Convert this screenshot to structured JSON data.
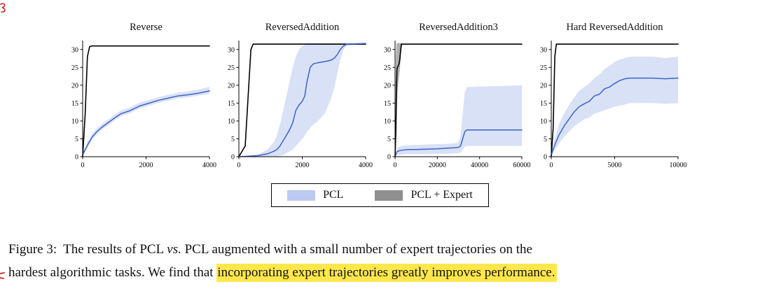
{
  "colors": {
    "pcl_line": "#3c64c8",
    "pcl_band": "#b9c8f0",
    "expert_line": "#000000",
    "expert_band": "#7a7a7a",
    "highlight": "#ffe74c",
    "artifact_red": "#cc2222"
  },
  "legend": {
    "items": [
      {
        "label": "PCL",
        "swatch": "#bccaf1"
      },
      {
        "label": "PCL + Expert",
        "swatch": "#8f8f8f"
      }
    ]
  },
  "caption": {
    "label": "Figure 3:",
    "line1_a": "The results of PCL",
    "vs": "vs.",
    "line1_b": "PCL augmented with a small number of expert trajectories on the",
    "line2_a": "hardest algorithmic tasks. We find that",
    "line2_highlight": "incorporating expert trajectories greatly improves performance."
  },
  "chart_data": [
    {
      "type": "line",
      "title": "Reverse",
      "xlim": [
        0,
        4000
      ],
      "ylim": [
        0,
        32.5
      ],
      "xticks": [
        0,
        2000,
        4000
      ],
      "yticks": [
        0,
        5,
        10,
        15,
        20,
        25,
        30
      ],
      "series": [
        {
          "name": "PCL + Expert",
          "color": "#000000",
          "width": 1.6,
          "x": [
            0,
            80,
            150,
            220,
            300,
            4000
          ],
          "y": [
            0,
            12,
            28,
            30.8,
            31,
            31
          ]
        },
        {
          "name": "PCL",
          "color": "#3c64c8",
          "width": 1.5,
          "x": [
            0,
            150,
            300,
            450,
            600,
            800,
            1000,
            1200,
            1500,
            1800,
            2100,
            2400,
            2700,
            3000,
            3300,
            3600,
            4000
          ],
          "y": [
            0.5,
            3.2,
            5.5,
            7,
            8.2,
            9.5,
            10.8,
            12,
            12.9,
            14.2,
            15,
            15.8,
            16.4,
            17,
            17.3,
            17.7,
            18.4
          ],
          "band": {
            "color": "#b9c8f0",
            "opacity": 0.55,
            "lo": [
              0,
              2.5,
              4.8,
              6.3,
              7.5,
              8.8,
              10.1,
              11.3,
              12.2,
              13.5,
              14.3,
              15.1,
              15.7,
              16.3,
              16.6,
              17,
              17.6
            ],
            "hi": [
              1.2,
              4.1,
              6.4,
              7.9,
              9.1,
              10.4,
              11.7,
              12.9,
              13.8,
              15.1,
              15.9,
              16.7,
              17.3,
              17.9,
              18.2,
              18.7,
              19.5
            ]
          }
        }
      ]
    },
    {
      "type": "line",
      "title": "ReversedAddition",
      "xlim": [
        0,
        4000
      ],
      "ylim": [
        0,
        32.5
      ],
      "xticks": [
        0,
        2000,
        4000
      ],
      "yticks": [
        0,
        5,
        10,
        15,
        20,
        25,
        30
      ],
      "series": [
        {
          "name": "PCL + Expert",
          "color": "#000000",
          "width": 1.6,
          "x": [
            0,
            200,
            300,
            380,
            450,
            4000
          ],
          "y": [
            0,
            3,
            18,
            30,
            31.5,
            31.5
          ]
        },
        {
          "name": "PCL",
          "color": "#3c64c8",
          "width": 1.5,
          "x": [
            0,
            600,
            900,
            1100,
            1200,
            1300,
            1400,
            1500,
            1600,
            1700,
            1800,
            1900,
            2000,
            2080,
            2150,
            2250,
            2350,
            2500,
            2700,
            2900,
            3000,
            3100,
            3200,
            3300,
            3400,
            4000
          ],
          "y": [
            0,
            0.3,
            0.8,
            1.5,
            2,
            3,
            4.5,
            6,
            7.5,
            9.5,
            13,
            14.5,
            15.5,
            17,
            21,
            25,
            26,
            26.3,
            26.6,
            27,
            27.5,
            28.5,
            30,
            31,
            31.5,
            31.7
          ],
          "band": {
            "color": "#b9c8f0",
            "opacity": 0.55,
            "lo": [
              0,
              0,
              0,
              0,
              0,
              0.3,
              0.5,
              1,
              1.5,
              2,
              3,
              4,
              5,
              6,
              7,
              8,
              9,
              10,
              12,
              16,
              19,
              23,
              27,
              30,
              31,
              31.5
            ],
            "hi": [
              0,
              0.6,
              2,
              4,
              6,
              9,
              13,
              17,
              21,
              25,
              28,
              30,
              31,
              31.5,
              31.8,
              31.8,
              31.8,
              31.8,
              31.8,
              31.8,
              31.8,
              31.8,
              31.8,
              31.8,
              31.8,
              31.8
            ]
          }
        }
      ]
    },
    {
      "type": "line",
      "title": "ReversedAddition3",
      "xlim": [
        0,
        60000
      ],
      "ylim": [
        0,
        32.5
      ],
      "xticks": [
        0,
        20000,
        40000,
        60000
      ],
      "yticks": [
        0,
        5,
        10,
        15,
        20,
        25,
        30
      ],
      "series": [
        {
          "name": "PCL + Expert",
          "color": "#000000",
          "width": 1.6,
          "x": [
            0,
            400,
            700,
            900,
            1100,
            1400,
            1800,
            2200,
            2600,
            3000,
            60000
          ],
          "y": [
            0,
            8,
            20,
            24.5,
            25,
            25.3,
            25.8,
            27,
            29.5,
            31.5,
            31.5
          ],
          "band": {
            "color": "#7a7a7a",
            "opacity": 0.6,
            "x": [
              0,
              400,
              700,
              900,
              1100,
              1400,
              1800,
              2200,
              2600,
              3000,
              3400
            ],
            "lo": [
              0,
              2,
              8,
              14,
              18,
              20,
              22,
              24,
              27,
              30,
              31.5
            ],
            "hi": [
              0,
              28,
              31.8,
              31.8,
              31.8,
              31.8,
              31.8,
              31.8,
              31.8,
              31.8,
              31.8
            ]
          }
        },
        {
          "name": "PCL",
          "color": "#3c64c8",
          "width": 1.5,
          "x": [
            0,
            1000,
            3000,
            6000,
            10000,
            15000,
            20000,
            25000,
            28000,
            30000,
            31000,
            32000,
            33000,
            34000,
            60000
          ],
          "y": [
            0,
            1.5,
            1.8,
            2,
            2,
            2.1,
            2.2,
            2.4,
            2.5,
            2.6,
            3,
            5,
            7,
            7.5,
            7.5
          ],
          "band": {
            "color": "#b9c8f0",
            "opacity": 0.55,
            "lo": [
              0,
              0.5,
              0.6,
              0.7,
              0.7,
              0.7,
              0.8,
              0.8,
              0.9,
              1,
              1.2,
              2,
              2.8,
              3,
              3
            ],
            "hi": [
              0,
              2.5,
              3,
              3.2,
              3.3,
              3.4,
              3.5,
              3.6,
              3.8,
              4,
              6,
              12,
              18,
              19.5,
              20
            ]
          }
        }
      ]
    },
    {
      "type": "line",
      "title": "Hard ReversedAddition",
      "xlim": [
        0,
        10000
      ],
      "ylim": [
        0,
        32.5
      ],
      "xticks": [
        0,
        5000,
        10000
      ],
      "yticks": [
        0,
        5,
        10,
        15,
        20,
        25,
        30
      ],
      "series": [
        {
          "name": "PCL + Expert",
          "color": "#000000",
          "width": 1.6,
          "x": [
            0,
            150,
            280,
            400,
            10000
          ],
          "y": [
            0,
            8,
            28,
            31.5,
            31.5
          ]
        },
        {
          "name": "PCL",
          "color": "#3c64c8",
          "width": 1.5,
          "x": [
            0,
            300,
            600,
            1000,
            1400,
            1800,
            2200,
            2600,
            3000,
            3400,
            3800,
            4200,
            4600,
            5000,
            5400,
            5800,
            6200,
            7000,
            8000,
            9000,
            10000
          ],
          "y": [
            0.5,
            3.5,
            6,
            8.5,
            10.5,
            12.5,
            14,
            14.8,
            15.5,
            17,
            17.5,
            19,
            19.5,
            20.5,
            21.3,
            21.8,
            22,
            22,
            22,
            21.8,
            22
          ],
          "band": {
            "color": "#b9c8f0",
            "opacity": 0.55,
            "lo": [
              0,
              2,
              3.5,
              5.5,
              7,
              8.5,
              9.5,
              10.5,
              11,
              12,
              12.5,
              13,
              13.5,
              14,
              14.3,
              14.6,
              15,
              15,
              15,
              14.8,
              15
            ],
            "hi": [
              1,
              5.5,
              9,
              12,
              14.5,
              16.5,
              18.5,
              19.5,
              20.5,
              22,
              23,
              24.5,
              25.5,
              26.5,
              27.2,
              27.6,
              28,
              28,
              28,
              27.6,
              28
            ]
          }
        }
      ]
    }
  ]
}
